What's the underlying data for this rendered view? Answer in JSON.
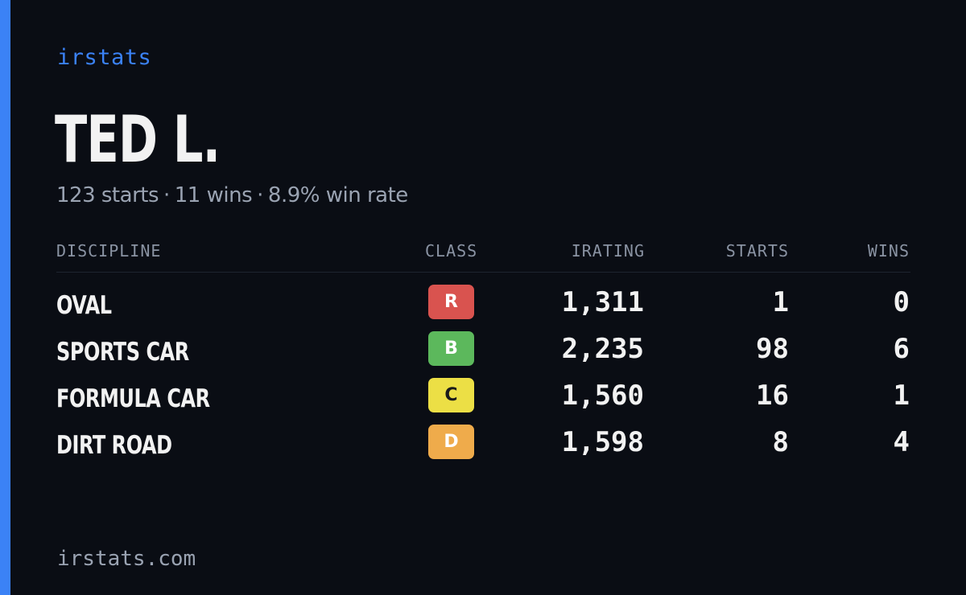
{
  "brand": "irstats",
  "driver": {
    "name": "TED L.",
    "starts_text": "123 starts",
    "wins_text": "11 wins",
    "win_rate_text": "8.9% win rate"
  },
  "table": {
    "headers": {
      "discipline": "DISCIPLINE",
      "class": "CLASS",
      "irating": "IRATING",
      "starts": "STARTS",
      "wins": "WINS"
    },
    "rows": [
      {
        "discipline": "OVAL",
        "class": "R",
        "irating": "1,311",
        "starts": "1",
        "wins": "0",
        "class_color": "#d9534f",
        "class_text_color": "#ffffff"
      },
      {
        "discipline": "SPORTS CAR",
        "class": "B",
        "irating": "2,235",
        "starts": "98",
        "wins": "6",
        "class_color": "#5cb85c",
        "class_text_color": "#ffffff"
      },
      {
        "discipline": "FORMULA CAR",
        "class": "C",
        "irating": "1,560",
        "starts": "16",
        "wins": "1",
        "class_color": "#ecdf45",
        "class_text_color": "#1a1a1a"
      },
      {
        "discipline": "DIRT ROAD",
        "class": "D",
        "irating": "1,598",
        "starts": "8",
        "wins": "4",
        "class_color": "#efab4b",
        "class_text_color": "#ffffff"
      }
    ]
  },
  "footer": "irstats.com",
  "colors": {
    "accent": "#3b82f6",
    "background": "#0a0d14",
    "muted_text": "#9aa3b2"
  }
}
